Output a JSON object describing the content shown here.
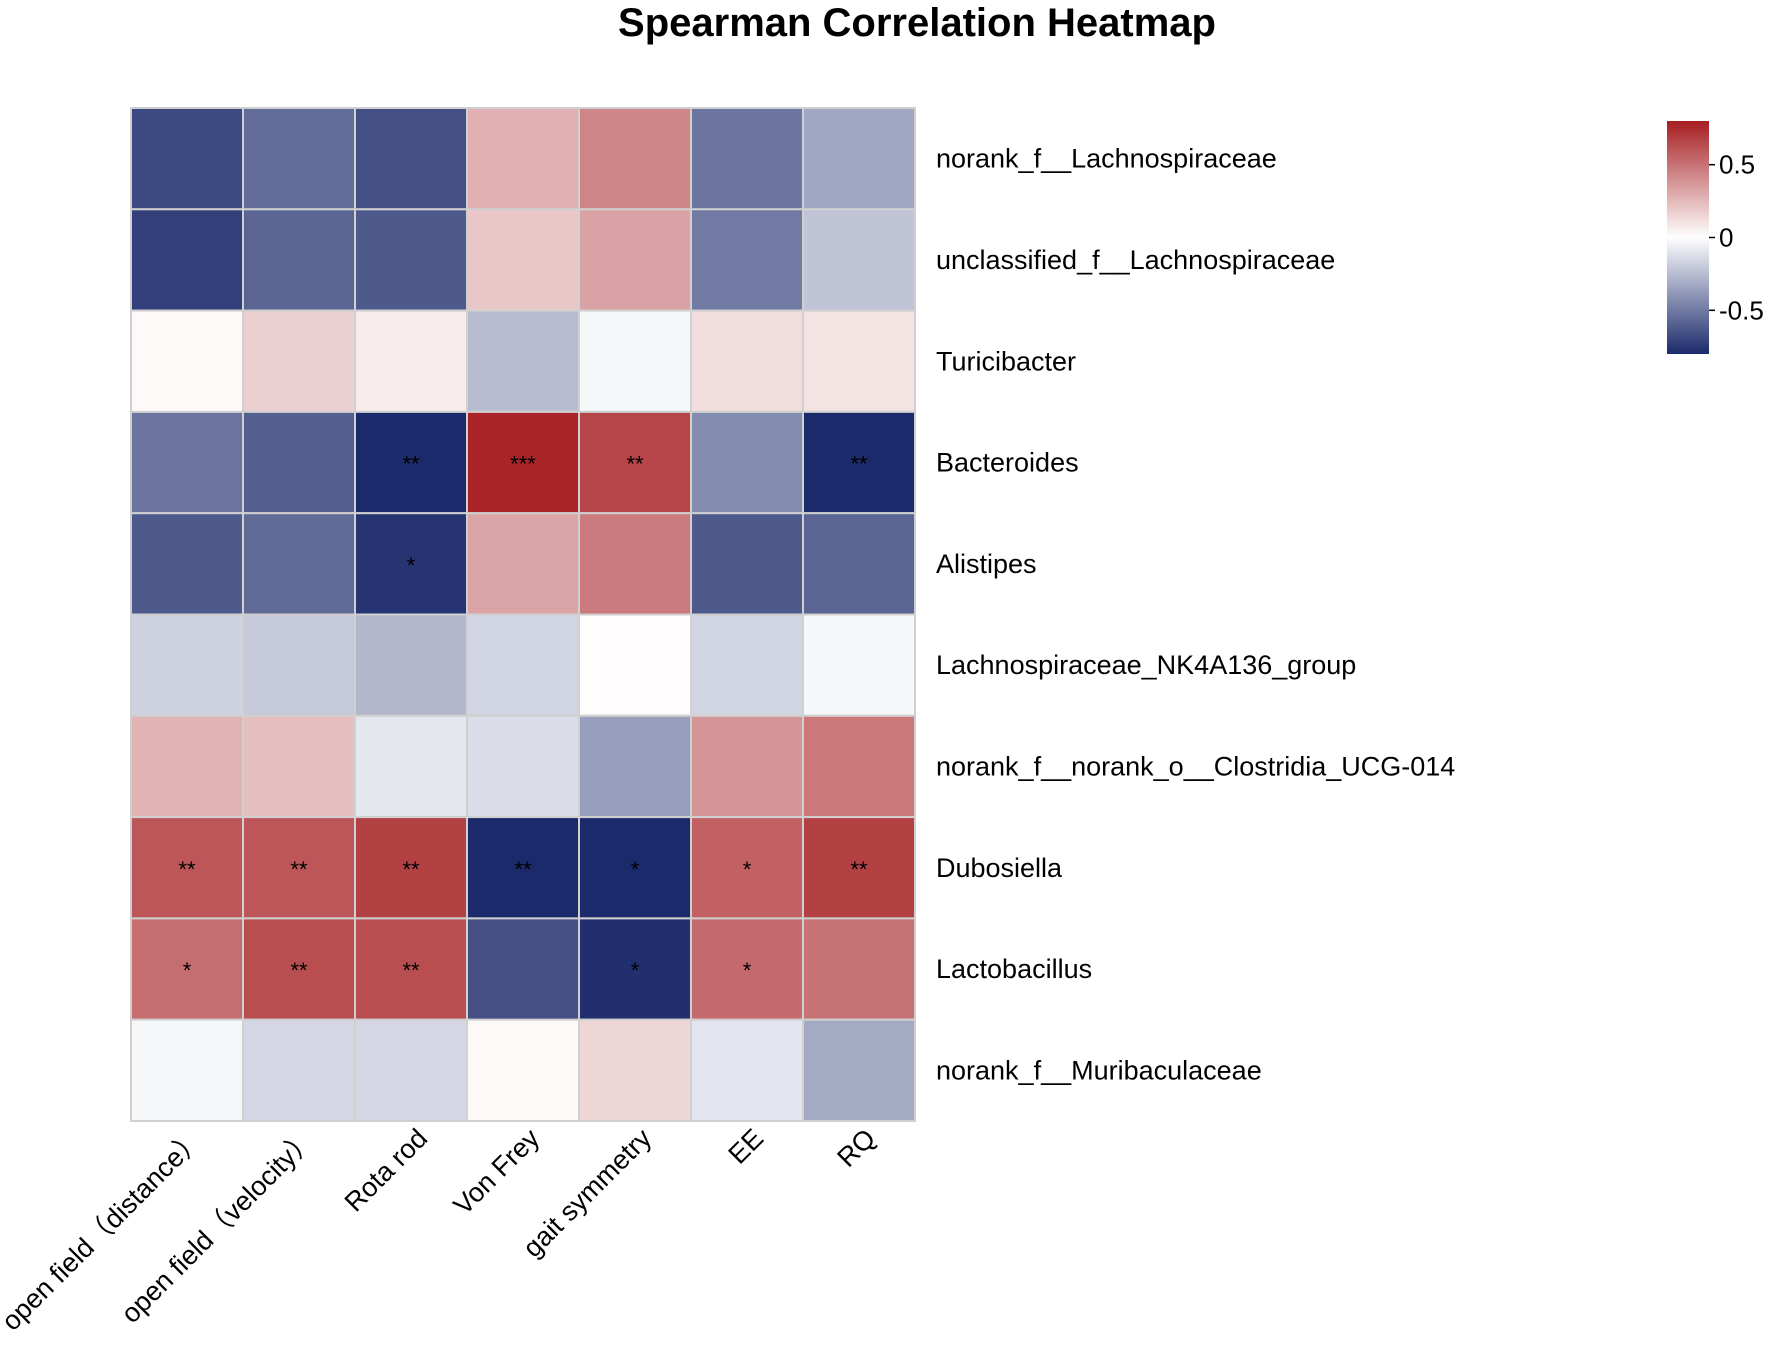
{
  "chart_data": {
    "type": "heatmap",
    "title": "Spearman Correlation Heatmap",
    "columns": [
      "open field（distance）",
      "open field（velocity）",
      "Rota rod",
      "Von Frey",
      "gait symmetry",
      "EE",
      "RQ"
    ],
    "rows": [
      "norank_f__Lachnospiraceae",
      "unclassified_f__Lachnospiraceae",
      "Turicibacter",
      "Bacteroides",
      "Alistipes",
      "Lachnospiraceae_NK4A136_group",
      "norank_f__norank_o__Clostridia_UCG-014",
      "Dubosiella",
      "Lactobacillus",
      "norank_f__Muribaculaceae"
    ],
    "values": [
      [
        -0.68,
        -0.55,
        -0.66,
        0.28,
        0.43,
        -0.52,
        -0.33
      ],
      [
        -0.72,
        -0.58,
        -0.62,
        0.2,
        0.33,
        -0.5,
        -0.22
      ],
      [
        0.02,
        0.17,
        0.07,
        -0.25,
        -0.03,
        0.12,
        0.1
      ],
      [
        -0.52,
        -0.6,
        -0.88,
        0.78,
        0.66,
        -0.43,
        -0.88
      ],
      [
        -0.62,
        -0.56,
        -0.76,
        0.32,
        0.47,
        -0.62,
        -0.58
      ],
      [
        -0.17,
        -0.2,
        -0.27,
        -0.16,
        0.01,
        -0.16,
        -0.03
      ],
      [
        0.27,
        0.23,
        -0.09,
        -0.13,
        -0.36,
        0.38,
        0.48
      ],
      [
        0.6,
        0.6,
        0.68,
        -0.88,
        -0.86,
        0.56,
        0.68
      ],
      [
        0.52,
        0.63,
        0.63,
        -0.66,
        -0.78,
        0.53,
        0.5
      ],
      [
        -0.03,
        -0.15,
        -0.15,
        0.02,
        0.15,
        -0.1,
        -0.32
      ]
    ],
    "significance": [
      [
        "",
        "",
        "",
        "",
        "",
        "",
        ""
      ],
      [
        "",
        "",
        "",
        "",
        "",
        "",
        ""
      ],
      [
        "",
        "",
        "",
        "",
        "",
        "",
        ""
      ],
      [
        "",
        "",
        "**",
        "***",
        "**",
        "",
        "**"
      ],
      [
        "",
        "",
        "*",
        "",
        "",
        "",
        ""
      ],
      [
        "",
        "",
        "",
        "",
        "",
        "",
        ""
      ],
      [
        "",
        "",
        "",
        "",
        "",
        "",
        ""
      ],
      [
        "**",
        "**",
        "**",
        "**",
        "*",
        "*",
        "**"
      ],
      [
        "*",
        "**",
        "**",
        "",
        "*",
        "*",
        ""
      ],
      [
        "",
        "",
        "",
        "",
        "",
        "",
        ""
      ]
    ],
    "color_scale": {
      "min": -0.8,
      "max": 0.8,
      "low_color": "#1b2a6b",
      "mid_color": "#ffffff",
      "high_color": "#a61e22",
      "ticks": [
        {
          "value": 0.5,
          "label": "0.5"
        },
        {
          "value": 0,
          "label": "0"
        },
        {
          "value": -0.5,
          "label": "-0.5"
        }
      ]
    }
  }
}
